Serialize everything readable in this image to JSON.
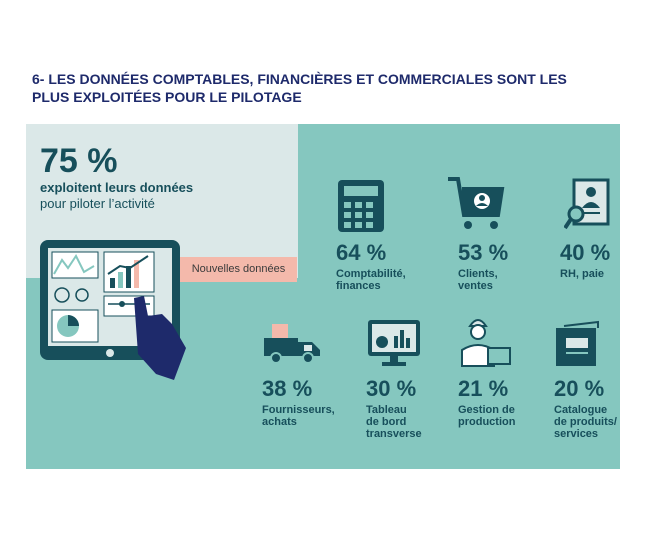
{
  "title": "6- LES DONNÉES COMPTABLES, FINANCIÈRES ET COMMERCIALES SONT LES PLUS EXPLOITÉES POUR LE PILOTAGE",
  "headline": {
    "value": "75 %",
    "line1": "exploitent leurs données",
    "line2": "pour piloter l’activité"
  },
  "badge": "Nouvelles données",
  "stats": [
    {
      "value": "64 %",
      "label_lines": [
        "Comptabilité,",
        "finances"
      ],
      "icon": "calculator-icon"
    },
    {
      "value": "53 %",
      "label_lines": [
        "Clients,",
        "ventes"
      ],
      "icon": "shopping-cart-icon"
    },
    {
      "value": "40 %",
      "label_lines": [
        "RH, paie"
      ],
      "icon": "hr-file-icon"
    },
    {
      "value": "38 %",
      "label_lines": [
        "Fournisseurs,",
        "achats"
      ],
      "icon": "delivery-truck-icon"
    },
    {
      "value": "30 %",
      "label_lines": [
        "Tableau",
        "de bord",
        "transverse"
      ],
      "icon": "dashboard-monitor-icon"
    },
    {
      "value": "21 %",
      "label_lines": [
        "Gestion de",
        "production"
      ],
      "icon": "worker-icon"
    },
    {
      "value": "20 %",
      "label_lines": [
        "Catalogue",
        "de produits/",
        "services"
      ],
      "icon": "catalog-book-icon"
    }
  ],
  "colors": {
    "dark": "#174f5b",
    "teal": "#85c7bf",
    "light": "#dbe8e8",
    "pink": "#f4b9ab",
    "navy": "#1e2a6b"
  }
}
